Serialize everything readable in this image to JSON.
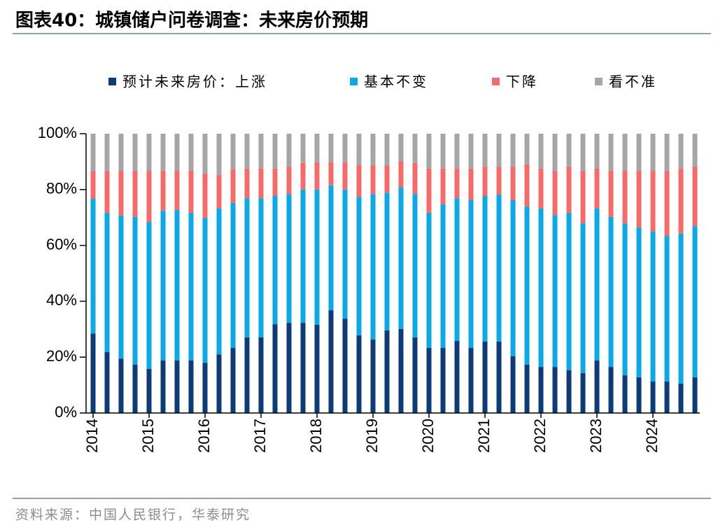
{
  "chart_data": {
    "type": "stacked_bar",
    "title": "图表40：城镇储户问卷调查：未来房价预期",
    "source": "资料来源：中国人民银行，华泰研究",
    "categories": [
      "2014",
      null,
      null,
      null,
      "2015",
      null,
      null,
      null,
      "2016",
      null,
      null,
      null,
      "2017",
      null,
      null,
      null,
      "2018",
      null,
      null,
      null,
      "2019",
      null,
      null,
      null,
      "2020",
      null,
      null,
      null,
      "2021",
      null,
      null,
      null,
      "2022",
      null,
      null,
      null,
      "2023",
      null,
      null,
      null,
      "2024",
      null,
      null,
      null
    ],
    "series": [
      {
        "name": "预计未来房价：上涨",
        "color": "#0d3a78",
        "values": [
          28.5,
          21.8,
          19.5,
          17.3,
          15.8,
          18.8,
          18.8,
          18.8,
          18.0,
          21.0,
          23.3,
          27.1,
          27.1,
          31.8,
          32.3,
          32.3,
          31.6,
          36.8,
          33.8,
          27.8,
          26.3,
          29.6,
          30.1,
          27.1,
          23.3,
          23.3,
          25.8,
          23.3,
          25.6,
          25.6,
          20.3,
          17.3,
          16.5,
          16.5,
          15.3,
          14.3,
          18.8,
          16.5,
          13.5,
          12.8,
          11.3,
          11.3,
          10.5,
          12.8
        ]
      },
      {
        "name": "基本不变",
        "color": "#0aa9e8",
        "values": [
          48.2,
          49.9,
          51.2,
          52.9,
          52.6,
          53.6,
          53.9,
          52.9,
          51.9,
          52.2,
          51.9,
          49.8,
          49.8,
          45.9,
          46.1,
          47.7,
          48.4,
          44.7,
          46.2,
          49.6,
          52.1,
          49.3,
          50.6,
          51.3,
          48.4,
          51.4,
          51.1,
          52.9,
          52.1,
          52.6,
          55.9,
          56.6,
          56.7,
          54.4,
          56.4,
          53.6,
          54.4,
          53.7,
          54.4,
          53.6,
          53.6,
          52.1,
          53.7,
          54.1
        ]
      },
      {
        "name": "下降",
        "color": "#f76a6a",
        "values": [
          10.0,
          15.0,
          16.0,
          16.5,
          18.3,
          14.3,
          14.0,
          15.0,
          15.8,
          12.0,
          12.0,
          10.6,
          10.6,
          9.8,
          9.8,
          9.5,
          9.7,
          8.2,
          9.7,
          11.3,
          10.3,
          9.8,
          9.5,
          11.1,
          15.8,
          12.8,
          10.6,
          11.3,
          10.5,
          10.0,
          12.0,
          15.1,
          14.3,
          15.8,
          16.5,
          18.8,
          14.3,
          16.5,
          18.8,
          20.3,
          21.8,
          23.3,
          23.3,
          21.3
        ]
      },
      {
        "name": "看不准",
        "color": "#a6a6a6",
        "values": [
          13.3,
          13.3,
          13.3,
          13.3,
          13.3,
          13.3,
          13.3,
          13.3,
          14.3,
          14.8,
          12.8,
          12.5,
          12.5,
          12.5,
          11.8,
          10.5,
          10.3,
          10.3,
          10.3,
          11.3,
          11.3,
          11.3,
          9.8,
          10.5,
          12.5,
          12.5,
          12.5,
          12.5,
          11.8,
          11.8,
          11.8,
          11.0,
          12.5,
          13.3,
          11.8,
          13.3,
          12.5,
          13.3,
          13.3,
          13.3,
          13.3,
          13.3,
          12.5,
          11.8
        ]
      }
    ],
    "ylim": [
      0,
      100
    ],
    "yticks": [
      {
        "value": 0,
        "label": "0%"
      },
      {
        "value": 20,
        "label": "20%"
      },
      {
        "value": 40,
        "label": "40%"
      },
      {
        "value": 60,
        "label": "60%"
      },
      {
        "value": 80,
        "label": "80%"
      },
      {
        "value": 100,
        "label": "100%"
      }
    ],
    "legend": "top"
  }
}
